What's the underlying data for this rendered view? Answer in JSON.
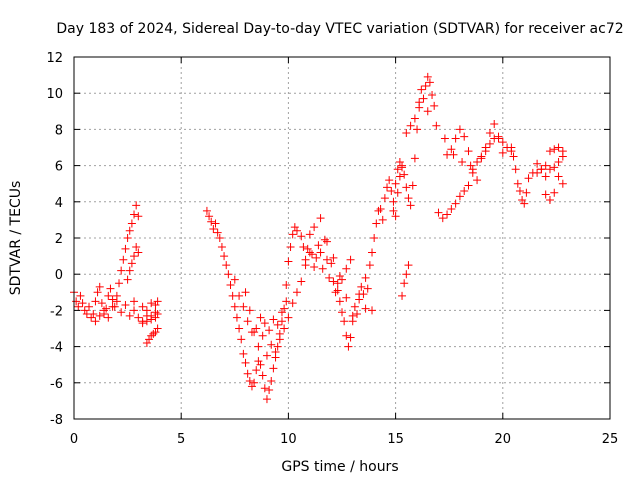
{
  "chart_data": {
    "type": "scatter",
    "title": "Day 183 of 2024, Sidereal Day-to-day VTEC variation (SDTVAR) for receiver ac72",
    "xlabel": "GPS time / hours",
    "ylabel": "SDTVAR / TECUs",
    "xlim": [
      0,
      25
    ],
    "ylim": [
      -8,
      12
    ],
    "xticks": [
      0,
      5,
      10,
      15,
      20,
      25
    ],
    "yticks": [
      -8,
      -6,
      -4,
      -2,
      0,
      2,
      4,
      6,
      8,
      10,
      12
    ],
    "grid": true,
    "marker": "+",
    "series_color": "#ff0000",
    "series": [
      {
        "name": "SDTVAR",
        "x": [
          0.0,
          0.1,
          0.2,
          0.3,
          0.4,
          0.5,
          0.6,
          0.7,
          0.8,
          0.9,
          1.0,
          1.1,
          1.2,
          1.3,
          1.4,
          1.5,
          1.6,
          1.7,
          1.8,
          1.9,
          2.0,
          2.1,
          2.2,
          2.3,
          2.4,
          2.5,
          2.6,
          2.7,
          2.8,
          2.9,
          3.0,
          1.0,
          1.2,
          1.4,
          1.6,
          1.8,
          2.0,
          2.2,
          2.4,
          2.6,
          2.8,
          2.5,
          2.6,
          2.7,
          2.8,
          2.9,
          3.0,
          3.2,
          3.4,
          3.6,
          3.8,
          3.9,
          3.2,
          3.4,
          3.6,
          3.8,
          3.9,
          2.8,
          3.0,
          3.2,
          3.4,
          3.6,
          3.8,
          3.4,
          3.5,
          3.6,
          3.7,
          3.8,
          3.9,
          6.2,
          6.3,
          6.4,
          6.5,
          6.6,
          6.7,
          6.8,
          6.9,
          7.0,
          7.1,
          7.2,
          7.3,
          7.4,
          7.5,
          7.6,
          7.7,
          7.8,
          7.9,
          8.0,
          8.1,
          8.2,
          8.3,
          8.4,
          8.5,
          8.6,
          8.7,
          8.8,
          8.9,
          9.0,
          9.1,
          9.2,
          9.3,
          9.4,
          9.5,
          9.6,
          9.7,
          9.8,
          9.9,
          10.0,
          10.1,
          10.2,
          10.3,
          10.4,
          7.5,
          7.7,
          7.9,
          8.1,
          8.3,
          8.5,
          8.7,
          8.9,
          9.1,
          9.3,
          9.5,
          9.7,
          9.9,
          8.0,
          8.2,
          8.4,
          8.6,
          8.8,
          9.0,
          9.2,
          9.4,
          9.6,
          9.8,
          10.0,
          10.2,
          10.4,
          10.6,
          10.8,
          11.0,
          10.6,
          10.7,
          10.8,
          10.9,
          11.0,
          11.1,
          11.2,
          11.3,
          11.4,
          11.5,
          11.6,
          11.7,
          11.8,
          11.9,
          12.0,
          12.1,
          12.2,
          12.3,
          12.4,
          12.5,
          12.6,
          12.7,
          12.8,
          12.9,
          13.0,
          13.1,
          13.2,
          13.3,
          13.4,
          13.5,
          13.6,
          13.7,
          13.8,
          13.9,
          14.0,
          14.1,
          14.2,
          11.2,
          11.5,
          11.8,
          12.1,
          12.4,
          12.7,
          13.0,
          13.3,
          13.6,
          13.9,
          12.3,
          12.5,
          12.7,
          12.9,
          14.3,
          14.4,
          14.5,
          14.6,
          14.7,
          14.8,
          14.9,
          15.0,
          15.1,
          15.2,
          15.3,
          15.4,
          15.5,
          15.6,
          15.7,
          15.8,
          15.9,
          16.0,
          16.1,
          16.2,
          16.3,
          16.4,
          16.5,
          16.6,
          16.7,
          16.8,
          14.9,
          15.0,
          15.1,
          15.2,
          15.3,
          15.5,
          15.7,
          15.9,
          16.1,
          16.5,
          16.9,
          17.3,
          17.7,
          18.1,
          18.5,
          15.3,
          15.4,
          15.5,
          15.6,
          17.0,
          17.2,
          17.4,
          17.6,
          17.8,
          18.0,
          18.2,
          18.4,
          18.6,
          18.8,
          19.0,
          19.2,
          19.4,
          19.6,
          19.8,
          20.0,
          20.2,
          20.4,
          17.4,
          17.6,
          17.8,
          18.0,
          18.2,
          18.4,
          18.6,
          18.8,
          19.0,
          19.2,
          19.4,
          19.6,
          19.8,
          20.0,
          20.4,
          20.5,
          20.6,
          20.7,
          20.8,
          20.9,
          21.0,
          21.1,
          21.2,
          21.4,
          21.6,
          21.8,
          22.0,
          22.2,
          22.4,
          22.6,
          22.8,
          22.0,
          22.2,
          22.4,
          22.6,
          22.8,
          22.2,
          22.4,
          22.6,
          22.8,
          21.6,
          21.8,
          22.0
        ],
        "y": [
          -1.0,
          -1.5,
          -1.8,
          -1.2,
          -1.6,
          -2.0,
          -2.2,
          -1.8,
          -2.4,
          -2.2,
          -1.5,
          -1.0,
          -0.7,
          -1.6,
          -2.2,
          -1.9,
          -1.2,
          -0.8,
          -1.4,
          -1.8,
          -1.2,
          -0.5,
          0.2,
          0.8,
          1.4,
          2.0,
          2.4,
          2.8,
          3.3,
          3.8,
          3.2,
          -2.6,
          -2.3,
          -2.0,
          -2.4,
          -1.8,
          -1.5,
          -2.1,
          -1.7,
          -2.3,
          -1.5,
          -0.3,
          0.2,
          0.6,
          1.0,
          1.5,
          1.2,
          -1.8,
          -2.0,
          -1.6,
          -1.7,
          -1.5,
          -2.6,
          -2.3,
          -2.5,
          -2.4,
          -2.2,
          -2.0,
          -2.4,
          -2.7,
          -2.6,
          -2.3,
          -2.1,
          -3.8,
          -3.6,
          -3.4,
          -3.3,
          -3.2,
          -3.0,
          3.5,
          3.2,
          2.9,
          2.5,
          2.8,
          2.3,
          2.0,
          1.5,
          1.0,
          0.5,
          0.0,
          -0.6,
          -1.2,
          -1.8,
          -2.4,
          -3.0,
          -3.6,
          -4.4,
          -4.9,
          -5.5,
          -5.9,
          -6.2,
          -6.0,
          -5.3,
          -4.8,
          -5.0,
          -5.6,
          -6.3,
          -6.9,
          -6.4,
          -5.9,
          -5.2,
          -4.6,
          -4.0,
          -3.3,
          -2.6,
          -1.9,
          -0.6,
          0.7,
          1.5,
          2.2,
          2.6,
          2.4,
          -0.3,
          -1.2,
          -1.8,
          -2.6,
          -3.2,
          -3.0,
          -2.4,
          -2.7,
          -3.1,
          -2.5,
          -2.8,
          -2.1,
          -1.5,
          -1.0,
          -2.0,
          -3.2,
          -4.0,
          -3.4,
          -4.5,
          -3.9,
          -4.3,
          -3.6,
          -3.0,
          -2.4,
          -1.6,
          -1.0,
          -0.4,
          0.5,
          1.2,
          2.1,
          1.5,
          0.8,
          1.4,
          2.2,
          1.1,
          0.4,
          0.9,
          1.6,
          1.2,
          0.3,
          1.9,
          0.8,
          -0.2,
          0.6,
          -0.4,
          -1.0,
          -0.5,
          -1.5,
          -2.1,
          -2.6,
          -3.4,
          -4.0,
          -3.5,
          -2.6,
          -1.8,
          -2.2,
          -1.4,
          -0.7,
          -1.1,
          -0.2,
          -0.8,
          0.5,
          1.2,
          2.0,
          2.8,
          3.5,
          2.6,
          3.1,
          1.8,
          0.9,
          -0.1,
          -1.3,
          -2.3,
          -1.1,
          -1.9,
          -2.0,
          -0.9,
          -0.3,
          0.3,
          0.8,
          3.6,
          3.0,
          4.2,
          4.8,
          5.2,
          4.6,
          3.5,
          3.2,
          4.5,
          5.4,
          6.0,
          5.5,
          4.8,
          4.2,
          3.8,
          4.9,
          6.4,
          8.0,
          9.5,
          10.2,
          9.7,
          10.4,
          10.9,
          10.6,
          9.9,
          9.3,
          4.0,
          5.0,
          5.8,
          6.2,
          5.9,
          7.8,
          8.2,
          8.6,
          9.2,
          9.0,
          8.2,
          7.5,
          6.6,
          6.2,
          6.0,
          -1.2,
          -0.5,
          0.0,
          0.5,
          3.4,
          3.1,
          3.3,
          3.6,
          3.9,
          4.3,
          4.6,
          4.9,
          5.6,
          6.2,
          6.5,
          6.8,
          7.2,
          7.5,
          7.6,
          7.3,
          7.0,
          6.8,
          6.6,
          6.9,
          7.5,
          8.0,
          7.6,
          6.8,
          5.8,
          5.2,
          6.4,
          7.0,
          7.8,
          8.3,
          7.5,
          6.7,
          7.0,
          6.5,
          5.8,
          5.0,
          4.6,
          4.1,
          3.9,
          4.5,
          5.3,
          5.6,
          6.1,
          5.8,
          5.4,
          5.8,
          5.9,
          6.2,
          6.5,
          4.4,
          4.1,
          4.5,
          5.4,
          5.0,
          6.8,
          6.9,
          7.0,
          6.8,
          5.6,
          5.8,
          6.0
        ]
      }
    ]
  }
}
